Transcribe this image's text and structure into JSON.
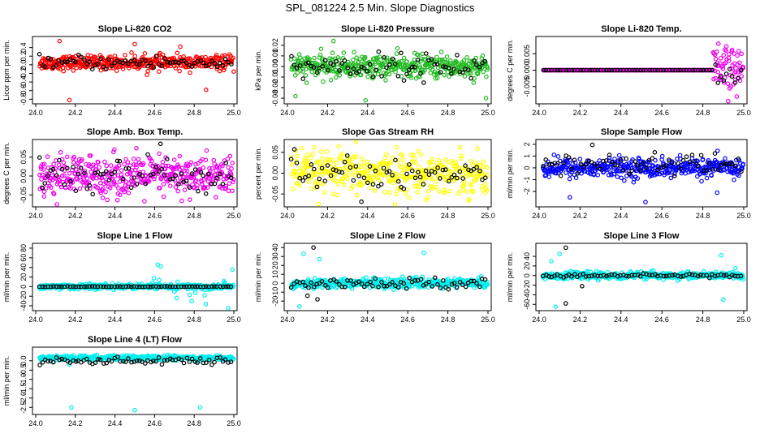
{
  "title": "SPL_081224  2.5 Min. Slope Diagnostics",
  "chart_data": [
    {
      "type": "scatter",
      "title": "Slope Li-820 CO2",
      "ylabel": "Licor ppm per min.",
      "xlim": [
        24.0,
        25.0
      ],
      "ylim": [
        -0.85,
        0.6
      ],
      "xticks": [
        "24.0",
        "24.2",
        "24.4",
        "24.6",
        "24.8",
        "25.0"
      ],
      "yticks": [
        "-0.8",
        "-0.6",
        "-0.4",
        "-0.2",
        "0.0",
        "0.2",
        "0.4"
      ],
      "ytick_values": [
        -0.8,
        -0.6,
        -0.4,
        -0.2,
        0.0,
        0.2,
        0.4
      ],
      "series": [
        {
          "color": "#ff0000",
          "band_center": 0.05,
          "band_spread": 0.18,
          "outliers": [
            [
              24.12,
              0.55
            ],
            [
              24.17,
              -0.82
            ],
            [
              24.5,
              0.48
            ],
            [
              24.86,
              -0.58
            ],
            [
              24.73,
              0.42
            ]
          ]
        },
        {
          "color": "#000000",
          "band_center": 0.05,
          "band_spread": 0.18
        }
      ]
    },
    {
      "type": "scatter",
      "title": "Slope Li-820 Pressure",
      "ylabel": "kPa per min.",
      "xlim": [
        24.0,
        25.0
      ],
      "ylim": [
        -0.033,
        0.026
      ],
      "xticks": [
        "24.0",
        "24.2",
        "24.4",
        "24.6",
        "24.8",
        "25.0"
      ],
      "yticks": [
        "-0.03",
        "-0.02",
        "-0.01",
        "0.00",
        "0.01",
        "0.02"
      ],
      "ytick_values": [
        -0.03,
        -0.02,
        -0.01,
        0.0,
        0.01,
        0.02
      ],
      "series": [
        {
          "color": "#22bb22",
          "band_center": 0.0,
          "band_spread": 0.012,
          "outliers": [
            [
              24.04,
              -0.028
            ],
            [
              24.23,
              0.024
            ],
            [
              24.39,
              -0.032
            ],
            [
              24.99,
              -0.03
            ]
          ]
        },
        {
          "color": "#000000",
          "band_center": 0.0,
          "band_spread": 0.013
        }
      ]
    },
    {
      "type": "scatter",
      "title": "Slope Li-820 Temp.",
      "ylabel": "degrees C per min.",
      "xlim": [
        24.0,
        25.0
      ],
      "ylim": [
        -0.0095,
        0.0095
      ],
      "xticks": [
        "24.0",
        "24.2",
        "24.4",
        "24.6",
        "24.8",
        "25.0"
      ],
      "yticks": [
        "-0.005",
        "0.000",
        "0.005"
      ],
      "ytick_values": [
        -0.005,
        0.0,
        0.005
      ],
      "series": [
        {
          "color": "#ee00ee",
          "band_center": 0.0,
          "band_spread": 0.0,
          "burst_from": 24.85,
          "burst_spread": 0.008
        },
        {
          "color": "#000000",
          "band_center": 0.0,
          "band_spread": 0.0,
          "burst_from": 24.85,
          "burst_spread": 0.004
        }
      ]
    },
    {
      "type": "scatter",
      "title": "Slope Amb. Box Temp.",
      "ylabel": "degrees C per min.",
      "xlim": [
        24.0,
        25.0
      ],
      "ylim": [
        -0.075,
        0.09
      ],
      "xticks": [
        "24.0",
        "24.2",
        "24.4",
        "24.6",
        "24.8",
        "25.0"
      ],
      "yticks": [
        "-0.05",
        "0.00",
        "0.05"
      ],
      "ytick_values": [
        -0.05,
        0.0,
        0.05
      ],
      "series": [
        {
          "color": "#ee00ee",
          "band_center": 0.0,
          "band_spread": 0.06
        },
        {
          "color": "#000000",
          "band_center": 0.0,
          "band_spread": 0.06,
          "outliers": [
            [
              24.63,
              0.085
            ]
          ]
        }
      ]
    },
    {
      "type": "scatter",
      "title": "Slope Gas Stream RH",
      "ylabel": "percent per min.",
      "xlim": [
        24.0,
        25.0
      ],
      "ylim": [
        -0.075,
        0.075
      ],
      "xticks": [
        "24.0",
        "24.2",
        "24.4",
        "24.6",
        "24.8",
        "25.0"
      ],
      "yticks": [
        "-0.05",
        "0.00",
        "0.05"
      ],
      "ytick_values": [
        -0.05,
        0.0,
        0.05
      ],
      "series": [
        {
          "color": "#ffff00",
          "band_center": 0.0,
          "band_spread": 0.055
        },
        {
          "color": "#000000",
          "band_center": 0.0,
          "band_spread": 0.045
        }
      ]
    },
    {
      "type": "scatter",
      "title": "Slope Sample Flow",
      "ylabel": "ml/min per min.",
      "xlim": [
        24.0,
        25.0
      ],
      "ylim": [
        -3.1,
        2.2
      ],
      "xticks": [
        "24.0",
        "24.2",
        "24.4",
        "24.6",
        "24.8",
        "25.0"
      ],
      "yticks": [
        "-2",
        "-1",
        "0",
        "1",
        "2"
      ],
      "ytick_values": [
        -2,
        -1,
        0,
        1,
        2
      ],
      "series": [
        {
          "color": "#0000ff",
          "band_center": 0.0,
          "band_spread": 0.9,
          "outliers": [
            [
              24.15,
              -2.5
            ],
            [
              24.52,
              -2.9
            ],
            [
              24.87,
              -2.1
            ]
          ]
        },
        {
          "color": "#000000",
          "band_center": 0.3,
          "band_spread": 1.0,
          "outliers": [
            [
              24.26,
              1.95
            ]
          ]
        }
      ]
    },
    {
      "type": "scatter",
      "title": "Slope Line 1 Flow",
      "ylabel": "ml/min per min.",
      "xlim": [
        24.0,
        25.0
      ],
      "ylim": [
        -45,
        85
      ],
      "xticks": [
        "24.0",
        "24.2",
        "24.4",
        "24.6",
        "24.8",
        "25.0"
      ],
      "yticks": [
        "-40",
        "-20",
        "0",
        "20",
        "40",
        "60",
        "80"
      ],
      "ytick_values": [
        -40,
        -20,
        0,
        20,
        40,
        60,
        80
      ],
      "series": [
        {
          "color": "#00eeee",
          "band_center": 0.0,
          "band_spread": 6,
          "scatter_from": 24.55,
          "scatter_spread": 55
        },
        {
          "color": "#000000",
          "band_center": 0.0,
          "band_spread": 0.5
        }
      ]
    },
    {
      "type": "scatter",
      "title": "Slope Line 2 Flow",
      "ylabel": "ml/min per min.",
      "xlim": [
        24.0,
        25.0
      ],
      "ylim": [
        -28,
        42
      ],
      "xticks": [
        "24.0",
        "24.2",
        "24.4",
        "24.6",
        "24.8",
        "25.0"
      ],
      "yticks": [
        "-20",
        "-10",
        "0",
        "10",
        "20",
        "30",
        "40"
      ],
      "ytick_values": [
        -20,
        -10,
        0,
        10,
        20,
        30,
        40
      ],
      "series": [
        {
          "color": "#00eeee",
          "band_center": 0.0,
          "band_spread": 6,
          "outliers": [
            [
              24.06,
              -26
            ],
            [
              24.08,
              33
            ],
            [
              24.68,
              34
            ],
            [
              24.16,
              27
            ]
          ]
        },
        {
          "color": "#000000",
          "band_center": 0.0,
          "band_spread": 6,
          "outliers": [
            [
              24.13,
              40
            ],
            [
              24.15,
              -18
            ],
            [
              24.1,
              -14
            ]
          ]
        }
      ]
    },
    {
      "type": "scatter",
      "title": "Slope Line 3 Flow",
      "ylabel": "ml/min per min.",
      "xlim": [
        24.0,
        25.0
      ],
      "ylim": [
        -68,
        62
      ],
      "xticks": [
        "24.0",
        "24.2",
        "24.4",
        "24.6",
        "24.8",
        "25.0"
      ],
      "yticks": [
        "-60",
        "-40",
        "-20",
        "0",
        "20",
        "40"
      ],
      "ytick_values": [
        -60,
        -40,
        -20,
        0,
        20,
        40
      ],
      "series": [
        {
          "color": "#00eeee",
          "band_center": 0.0,
          "band_spread": 8,
          "outliers": [
            [
              24.08,
              -65
            ],
            [
              24.1,
              45
            ],
            [
              24.06,
              30
            ],
            [
              24.9,
              -50
            ],
            [
              24.89,
              42
            ]
          ]
        },
        {
          "color": "#000000",
          "band_center": 0.0,
          "band_spread": 4,
          "outliers": [
            [
              24.13,
              58
            ],
            [
              24.13,
              -58
            ],
            [
              24.21,
              -22
            ]
          ]
        }
      ]
    },
    {
      "type": "scatter",
      "title": "Slope Line 4 (LT) Flow",
      "ylabel": "ml/min per min.",
      "xlim": [
        24.0,
        25.0
      ],
      "ylim": [
        -2.75,
        0.6
      ],
      "xticks": [
        "24.0",
        "24.2",
        "24.4",
        "24.6",
        "24.8",
        "25.0"
      ],
      "yticks": [
        "-2.5",
        "-2.0",
        "-1.5",
        "-1.0",
        "-0.5",
        "0.0"
      ],
      "ytick_values": [
        -2.5,
        -2.0,
        -1.5,
        -1.0,
        -0.5,
        0.0
      ],
      "series": [
        {
          "color": "#00eeee",
          "band_center": 0.15,
          "band_spread": 0.15,
          "outliers": [
            [
              24.18,
              -2.5
            ],
            [
              24.5,
              -2.65
            ],
            [
              24.83,
              -2.5
            ],
            [
              24.17,
              -0.2
            ]
          ]
        },
        {
          "color": "#000000",
          "band_center": 0.0,
          "band_spread": 0.2
        }
      ]
    }
  ]
}
